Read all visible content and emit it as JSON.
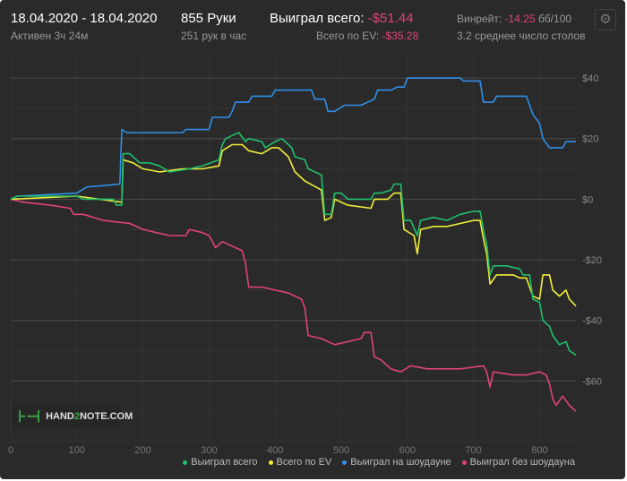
{
  "header": {
    "date_range": "18.04.2020 - 18.04.2020",
    "active": "Активен 3ч 24м",
    "hands": "855 Руки",
    "hands_per_hour": "251 рук в час",
    "won_label": "Выиграл всего:",
    "won_value": "-$51.44",
    "ev_label": "Всего по EV:",
    "ev_value": "-$35.28",
    "winrate_label": "Винрейт:",
    "winrate_value": "-14.25",
    "winrate_unit": "бб/100",
    "avg_tables": "3.2 среднее число столов",
    "settings_icon": "gear-icon"
  },
  "logo": {
    "text_a": "HAND",
    "text_b": "2",
    "text_c": "NOTE.COM"
  },
  "chart_data": {
    "type": "line",
    "xlim": [
      0,
      855
    ],
    "ylim": [
      -80,
      48
    ],
    "x_ticks": [
      0,
      100,
      200,
      300,
      400,
      500,
      600,
      700,
      800
    ],
    "y_ticks": [
      40,
      20,
      0,
      -20,
      -40,
      -60
    ],
    "y_tick_labels": [
      "$40",
      "$20",
      "$0",
      "-$20",
      "-$40",
      "-$60"
    ],
    "grid": true,
    "legend_position": "bottom-right",
    "series": [
      {
        "name": "Выиграл всего",
        "color": "#1fc06a",
        "points": [
          [
            0,
            0
          ],
          [
            10,
            1
          ],
          [
            100,
            1
          ],
          [
            110,
            0
          ],
          [
            155,
            0
          ],
          [
            160,
            -2
          ],
          [
            168,
            -2
          ],
          [
            170,
            15
          ],
          [
            180,
            15
          ],
          [
            195,
            12
          ],
          [
            210,
            12
          ],
          [
            225,
            11
          ],
          [
            240,
            9
          ],
          [
            270,
            10
          ],
          [
            290,
            11
          ],
          [
            315,
            13
          ],
          [
            320,
            18
          ],
          [
            325,
            20
          ],
          [
            335,
            21
          ],
          [
            345,
            22
          ],
          [
            355,
            19
          ],
          [
            360,
            20
          ],
          [
            380,
            19
          ],
          [
            385,
            17
          ],
          [
            400,
            19
          ],
          [
            410,
            20
          ],
          [
            425,
            17
          ],
          [
            430,
            14
          ],
          [
            445,
            13
          ],
          [
            450,
            10
          ],
          [
            470,
            8
          ],
          [
            475,
            -5
          ],
          [
            485,
            -5
          ],
          [
            490,
            2
          ],
          [
            500,
            2
          ],
          [
            510,
            0
          ],
          [
            545,
            0
          ],
          [
            550,
            2
          ],
          [
            560,
            2
          ],
          [
            575,
            3
          ],
          [
            580,
            5
          ],
          [
            590,
            5
          ],
          [
            595,
            -7
          ],
          [
            605,
            -7
          ],
          [
            615,
            -12
          ],
          [
            620,
            -7
          ],
          [
            640,
            -6
          ],
          [
            660,
            -7
          ],
          [
            680,
            -5
          ],
          [
            700,
            -4
          ],
          [
            710,
            -4
          ],
          [
            715,
            -10
          ],
          [
            720,
            -15
          ],
          [
            725,
            -25
          ],
          [
            730,
            -22
          ],
          [
            750,
            -22
          ],
          [
            770,
            -23
          ],
          [
            775,
            -25
          ],
          [
            785,
            -25
          ],
          [
            790,
            -33
          ],
          [
            800,
            -34
          ],
          [
            805,
            -40
          ],
          [
            815,
            -42
          ],
          [
            820,
            -45
          ],
          [
            830,
            -48
          ],
          [
            840,
            -47
          ],
          [
            845,
            -50
          ],
          [
            855,
            -51.44
          ]
        ]
      },
      {
        "name": "Всего по EV",
        "color": "#f2ee3a",
        "points": [
          [
            0,
            0
          ],
          [
            100,
            1
          ],
          [
            168,
            -1
          ],
          [
            170,
            13
          ],
          [
            185,
            12
          ],
          [
            200,
            10
          ],
          [
            225,
            9
          ],
          [
            260,
            10
          ],
          [
            290,
            10
          ],
          [
            315,
            11
          ],
          [
            320,
            16
          ],
          [
            335,
            18
          ],
          [
            350,
            18
          ],
          [
            360,
            16
          ],
          [
            380,
            15
          ],
          [
            395,
            17
          ],
          [
            405,
            17
          ],
          [
            420,
            14
          ],
          [
            430,
            9
          ],
          [
            445,
            6
          ],
          [
            470,
            3
          ],
          [
            475,
            -7
          ],
          [
            485,
            -6
          ],
          [
            490,
            0
          ],
          [
            510,
            -2
          ],
          [
            545,
            -3
          ],
          [
            550,
            0
          ],
          [
            570,
            0
          ],
          [
            580,
            2
          ],
          [
            590,
            2
          ],
          [
            595,
            -10
          ],
          [
            610,
            -12
          ],
          [
            615,
            -18
          ],
          [
            620,
            -10
          ],
          [
            640,
            -9
          ],
          [
            660,
            -9
          ],
          [
            700,
            -7
          ],
          [
            710,
            -7
          ],
          [
            715,
            -13
          ],
          [
            720,
            -18
          ],
          [
            725,
            -28
          ],
          [
            735,
            -25
          ],
          [
            760,
            -25
          ],
          [
            770,
            -26
          ],
          [
            780,
            -26
          ],
          [
            790,
            -32
          ],
          [
            800,
            -33
          ],
          [
            805,
            -25
          ],
          [
            815,
            -25
          ],
          [
            820,
            -30
          ],
          [
            830,
            -32
          ],
          [
            840,
            -30
          ],
          [
            845,
            -33
          ],
          [
            855,
            -35.28
          ]
        ]
      },
      {
        "name": "Выиграл на шоудауне",
        "color": "#2f8fe8",
        "points": [
          [
            0,
            0
          ],
          [
            10,
            1
          ],
          [
            100,
            2
          ],
          [
            115,
            4
          ],
          [
            165,
            5
          ],
          [
            168,
            23
          ],
          [
            175,
            22
          ],
          [
            260,
            22
          ],
          [
            265,
            23
          ],
          [
            300,
            23
          ],
          [
            305,
            27
          ],
          [
            330,
            27
          ],
          [
            335,
            29
          ],
          [
            340,
            32
          ],
          [
            360,
            32
          ],
          [
            365,
            34
          ],
          [
            395,
            34
          ],
          [
            400,
            36
          ],
          [
            455,
            36
          ],
          [
            460,
            33
          ],
          [
            475,
            33
          ],
          [
            480,
            29
          ],
          [
            490,
            29
          ],
          [
            505,
            31
          ],
          [
            530,
            31
          ],
          [
            550,
            33
          ],
          [
            555,
            36
          ],
          [
            575,
            36
          ],
          [
            585,
            37
          ],
          [
            595,
            37
          ],
          [
            600,
            40
          ],
          [
            680,
            40
          ],
          [
            685,
            39
          ],
          [
            710,
            39
          ],
          [
            715,
            32
          ],
          [
            730,
            32
          ],
          [
            735,
            34
          ],
          [
            780,
            34
          ],
          [
            790,
            28
          ],
          [
            800,
            25
          ],
          [
            805,
            20
          ],
          [
            815,
            17
          ],
          [
            835,
            17
          ],
          [
            840,
            19
          ],
          [
            855,
            19
          ]
        ]
      },
      {
        "name": "Выиграл без шоудауна",
        "color": "#e0437a",
        "points": [
          [
            0,
            0
          ],
          [
            20,
            -1
          ],
          [
            60,
            -2
          ],
          [
            90,
            -3
          ],
          [
            95,
            -5
          ],
          [
            110,
            -5
          ],
          [
            140,
            -7
          ],
          [
            180,
            -8
          ],
          [
            200,
            -10
          ],
          [
            240,
            -12
          ],
          [
            265,
            -12
          ],
          [
            270,
            -10
          ],
          [
            290,
            -11
          ],
          [
            300,
            -12
          ],
          [
            310,
            -16
          ],
          [
            320,
            -14
          ],
          [
            340,
            -16
          ],
          [
            350,
            -17
          ],
          [
            355,
            -21
          ],
          [
            360,
            -29
          ],
          [
            380,
            -29
          ],
          [
            400,
            -30
          ],
          [
            420,
            -31
          ],
          [
            440,
            -33
          ],
          [
            445,
            -36
          ],
          [
            450,
            -45
          ],
          [
            470,
            -46
          ],
          [
            490,
            -48
          ],
          [
            510,
            -47
          ],
          [
            530,
            -46
          ],
          [
            535,
            -44
          ],
          [
            545,
            -44
          ],
          [
            550,
            -52
          ],
          [
            560,
            -53
          ],
          [
            575,
            -56
          ],
          [
            590,
            -57
          ],
          [
            605,
            -55
          ],
          [
            630,
            -56
          ],
          [
            680,
            -56
          ],
          [
            715,
            -55
          ],
          [
            720,
            -57
          ],
          [
            725,
            -62
          ],
          [
            730,
            -57
          ],
          [
            760,
            -58
          ],
          [
            780,
            -58
          ],
          [
            800,
            -57
          ],
          [
            810,
            -58
          ],
          [
            815,
            -61
          ],
          [
            820,
            -66
          ],
          [
            825,
            -68
          ],
          [
            835,
            -65
          ],
          [
            845,
            -68
          ],
          [
            855,
            -70
          ]
        ]
      }
    ]
  }
}
